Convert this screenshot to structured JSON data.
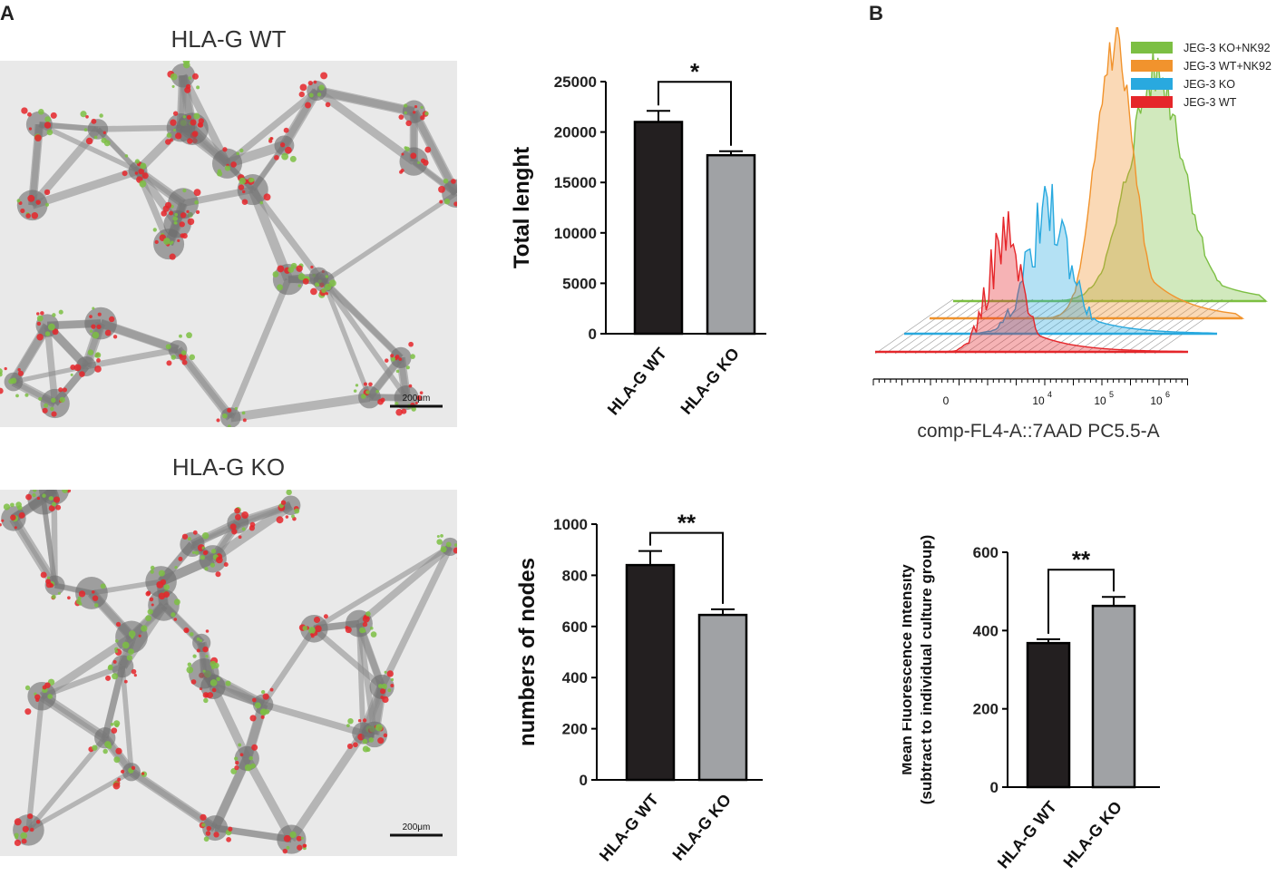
{
  "panels": {
    "a_label": "A",
    "b_label": "B"
  },
  "micrographs": [
    {
      "title": "HLA-G WT",
      "scale_bar": "200μm"
    },
    {
      "title": "HLA-G KO",
      "scale_bar": "200μm"
    }
  ],
  "colors": {
    "bar_wt": "#231f20",
    "bar_ko": "#a0a2a5",
    "hist_red": "#e5262a",
    "hist_blue": "#29a9df",
    "hist_orange": "#f1932d",
    "hist_green": "#7cbf43"
  },
  "chart_data": [
    {
      "id": "total-length",
      "type": "bar",
      "categories": [
        "HLA-G WT",
        "HLA-G KO"
      ],
      "values": [
        21000,
        17700
      ],
      "errors": [
        1100,
        400
      ],
      "ylabel": "Total lenght",
      "ylim": [
        0,
        25000
      ],
      "yticks": [
        "0",
        "5000",
        "10000",
        "15000",
        "20000",
        "25000"
      ],
      "significance": "*"
    },
    {
      "id": "nodes",
      "type": "bar",
      "categories": [
        "HLA-G WT",
        "HLA-G KO"
      ],
      "values": [
        840,
        645
      ],
      "errors": [
        55,
        22
      ],
      "ylabel": "numbers of nodes",
      "ylim": [
        0,
        1000
      ],
      "yticks": [
        "0",
        "200",
        "400",
        "600",
        "800",
        "1000"
      ],
      "significance": "**"
    },
    {
      "id": "histogram",
      "type": "area",
      "xlabel": "comp-FL4-A::7AAD PC5.5-A",
      "xticks": [
        "0",
        "10",
        "10",
        "10"
      ],
      "xtick_exps": [
        "",
        "4",
        "5",
        "6"
      ],
      "legend": [
        "JEG-3 KO+NK92",
        "JEG-3 WT+NK92",
        "JEG-3 KO",
        "JEG-3 WT"
      ],
      "legend_position": "top-right"
    },
    {
      "id": "mfi",
      "type": "bar",
      "categories": [
        "HLA-G WT",
        "HLA-G KO"
      ],
      "values": [
        368,
        463
      ],
      "errors": [
        10,
        23
      ],
      "ylabel_line1": "Mean Fluorescence Intensity",
      "ylabel_line2": "(subtract to individual culture group)",
      "ylim": [
        0,
        600
      ],
      "yticks": [
        "0",
        "200",
        "400",
        "600"
      ],
      "significance": "**"
    }
  ]
}
